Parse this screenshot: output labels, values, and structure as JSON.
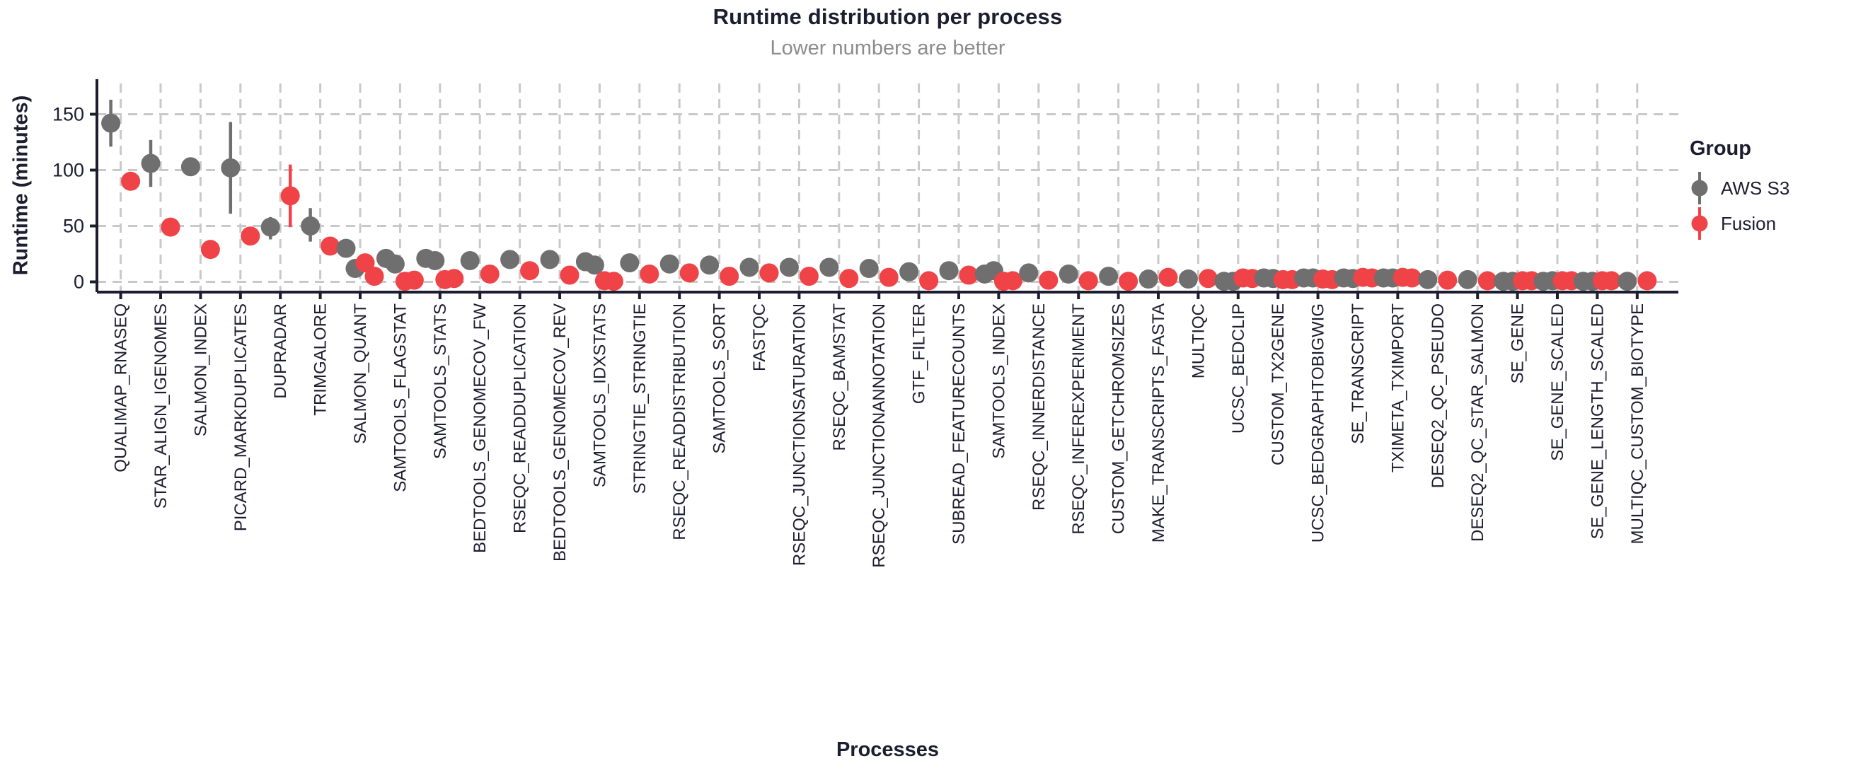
{
  "chart_data": {
    "type": "scatter",
    "title": "Runtime distribution per process",
    "subtitle": "Lower numbers are better",
    "xlabel": "Processes",
    "ylabel": "Runtime (minutes)",
    "ylim": [
      0,
      180
    ],
    "yticks": [
      0,
      50,
      100,
      150
    ],
    "grid": true,
    "legend": {
      "title": "Group",
      "position": "right",
      "entries": [
        {
          "id": "aws_s3",
          "label": "AWS S3",
          "color": "#6f6f6f"
        },
        {
          "id": "fusion",
          "label": "Fusion",
          "color": "#ef4348"
        }
      ]
    },
    "colors": {
      "title": "#1d1d30",
      "subtitle": "#8c8c8c",
      "axis": "#1d1d30",
      "grid": "#c9c9c9",
      "background": "#ffffff"
    },
    "processes": [
      {
        "name": "QUALIMAP_RNASEQ",
        "aws_s3": {
          "values": [
            142
          ],
          "range": [
            121,
            163
          ]
        },
        "fusion": {
          "values": [
            90
          ],
          "range": [
            82,
            96
          ]
        }
      },
      {
        "name": "STAR_ALIGN_IGENOMES",
        "aws_s3": {
          "values": [
            106
          ],
          "range": [
            85,
            127
          ]
        },
        "fusion": {
          "values": [
            49
          ]
        }
      },
      {
        "name": "SALMON_INDEX",
        "aws_s3": {
          "values": [
            103
          ]
        },
        "fusion": {
          "values": [
            29
          ]
        }
      },
      {
        "name": "PICARD_MARKDUPLICATES",
        "aws_s3": {
          "values": [
            102
          ],
          "range": [
            61,
            143
          ]
        },
        "fusion": {
          "values": [
            41
          ]
        }
      },
      {
        "name": "DUPRADAR",
        "aws_s3": {
          "values": [
            49
          ],
          "range": [
            38,
            58
          ]
        },
        "fusion": {
          "values": [
            77
          ],
          "range": [
            49,
            105
          ]
        }
      },
      {
        "name": "TRIMGALORE",
        "aws_s3": {
          "values": [
            50
          ],
          "range": [
            36,
            66
          ]
        },
        "fusion": {
          "values": [
            32
          ]
        }
      },
      {
        "name": "SALMON_QUANT",
        "aws_s3": {
          "values": [
            30,
            12
          ]
        },
        "fusion": {
          "values": [
            17,
            5
          ]
        }
      },
      {
        "name": "SAMTOOLS_FLAGSTAT",
        "aws_s3": {
          "values": [
            21,
            16
          ]
        },
        "fusion": {
          "values": [
            0.5,
            1.5
          ]
        }
      },
      {
        "name": "SAMTOOLS_STATS",
        "aws_s3": {
          "values": [
            21,
            19
          ],
          "range": [
            15,
            25
          ]
        },
        "fusion": {
          "values": [
            2,
            3
          ]
        }
      },
      {
        "name": "BEDTOOLS_GENOMECOV_FW",
        "aws_s3": {
          "values": [
            19
          ]
        },
        "fusion": {
          "values": [
            7
          ]
        }
      },
      {
        "name": "RSEQC_READDUPLICATION",
        "aws_s3": {
          "values": [
            20
          ]
        },
        "fusion": {
          "values": [
            10
          ]
        }
      },
      {
        "name": "BEDTOOLS_GENOMECOV_REV",
        "aws_s3": {
          "values": [
            20
          ]
        },
        "fusion": {
          "values": [
            6
          ]
        }
      },
      {
        "name": "SAMTOOLS_IDXSTATS",
        "aws_s3": {
          "values": [
            18,
            15
          ]
        },
        "fusion": {
          "values": [
            1,
            0.5
          ]
        }
      },
      {
        "name": "STRINGTIE_STRINGTIE",
        "aws_s3": {
          "values": [
            17
          ]
        },
        "fusion": {
          "values": [
            7
          ]
        }
      },
      {
        "name": "RSEQC_READDISTRIBUTION",
        "aws_s3": {
          "values": [
            16
          ]
        },
        "fusion": {
          "values": [
            8
          ]
        }
      },
      {
        "name": "SAMTOOLS_SORT",
        "aws_s3": {
          "values": [
            15
          ],
          "range": [
            7,
            22
          ]
        },
        "fusion": {
          "values": [
            5
          ]
        }
      },
      {
        "name": "FASTQC",
        "aws_s3": {
          "values": [
            13
          ]
        },
        "fusion": {
          "values": [
            8
          ]
        }
      },
      {
        "name": "RSEQC_JUNCTIONSATURATION",
        "aws_s3": {
          "values": [
            13
          ]
        },
        "fusion": {
          "values": [
            5
          ]
        }
      },
      {
        "name": "RSEQC_BAMSTAT",
        "aws_s3": {
          "values": [
            13
          ]
        },
        "fusion": {
          "values": [
            3
          ]
        }
      },
      {
        "name": "RSEQC_JUNCTIONANNOTATION",
        "aws_s3": {
          "values": [
            12
          ]
        },
        "fusion": {
          "values": [
            4
          ]
        }
      },
      {
        "name": "GTF_FILTER",
        "aws_s3": {
          "values": [
            9
          ]
        },
        "fusion": {
          "values": [
            1
          ]
        }
      },
      {
        "name": "SUBREAD_FEATURECOUNTS",
        "aws_s3": {
          "values": [
            10
          ]
        },
        "fusion": {
          "values": [
            6
          ]
        }
      },
      {
        "name": "SAMTOOLS_INDEX",
        "aws_s3": {
          "values": [
            7,
            10
          ]
        },
        "fusion": {
          "values": [
            0.5,
            1
          ]
        }
      },
      {
        "name": "RSEQC_INNERDISTANCE",
        "aws_s3": {
          "values": [
            8
          ]
        },
        "fusion": {
          "values": [
            1.5
          ]
        }
      },
      {
        "name": "RSEQC_INFEREXPERIMENT",
        "aws_s3": {
          "values": [
            7
          ]
        },
        "fusion": {
          "values": [
            1
          ]
        }
      },
      {
        "name": "CUSTOM_GETCHROMSIZES",
        "aws_s3": {
          "values": [
            5
          ]
        },
        "fusion": {
          "values": [
            0.5
          ]
        }
      },
      {
        "name": "MAKE_TRANSCRIPTS_FASTA",
        "aws_s3": {
          "values": [
            2.5
          ]
        },
        "fusion": {
          "values": [
            4
          ]
        }
      },
      {
        "name": "MULTIQC",
        "aws_s3": {
          "values": [
            2.5
          ]
        },
        "fusion": {
          "values": [
            3
          ]
        }
      },
      {
        "name": "UCSC_BEDCLIP",
        "aws_s3": {
          "values": [
            0.5,
            0.5
          ]
        },
        "fusion": {
          "values": [
            3.5,
            3
          ]
        }
      },
      {
        "name": "CUSTOM_TX2GENE",
        "aws_s3": {
          "values": [
            3.5,
            3
          ]
        },
        "fusion": {
          "values": [
            2,
            2
          ]
        }
      },
      {
        "name": "UCSC_BEDGRAPHTOBIGWIG",
        "aws_s3": {
          "values": [
            3.5,
            3.5
          ]
        },
        "fusion": {
          "values": [
            2.5,
            2
          ]
        }
      },
      {
        "name": "SE_TRANSCRIPT",
        "aws_s3": {
          "values": [
            3.5,
            3
          ]
        },
        "fusion": {
          "values": [
            4,
            3.5
          ]
        }
      },
      {
        "name": "TXIMETA_TXIMPORT",
        "aws_s3": {
          "values": [
            3.5,
            3.5
          ]
        },
        "fusion": {
          "values": [
            4,
            3.5
          ]
        }
      },
      {
        "name": "DESEQ2_QC_PSEUDO",
        "aws_s3": {
          "values": [
            2
          ]
        },
        "fusion": {
          "values": [
            1.5
          ]
        }
      },
      {
        "name": "DESEQ2_QC_STAR_SALMON",
        "aws_s3": {
          "values": [
            2
          ]
        },
        "fusion": {
          "values": [
            1
          ]
        }
      },
      {
        "name": "SE_GENE",
        "aws_s3": {
          "values": [
            0.5,
            0.5
          ]
        },
        "fusion": {
          "values": [
            1,
            1
          ]
        }
      },
      {
        "name": "SE_GENE_SCALED",
        "aws_s3": {
          "values": [
            0.5,
            1
          ]
        },
        "fusion": {
          "values": [
            1,
            1
          ]
        }
      },
      {
        "name": "SE_GENE_LENGTH_SCALED",
        "aws_s3": {
          "values": [
            0.5,
            0.5
          ]
        },
        "fusion": {
          "values": [
            1,
            1
          ]
        }
      },
      {
        "name": "MULTIQC_CUSTOM_BIOTYPE",
        "aws_s3": {
          "values": [
            0.5
          ]
        },
        "fusion": {
          "values": [
            1
          ]
        }
      }
    ]
  }
}
